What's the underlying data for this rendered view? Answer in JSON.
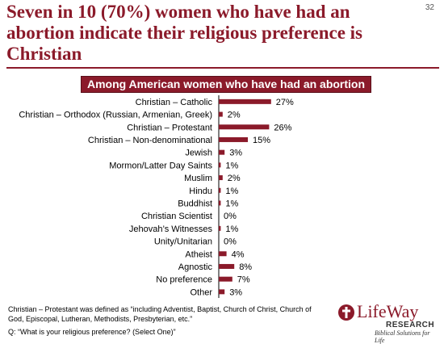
{
  "slide_number": "32",
  "title": "Seven in 10 (70%) women who have had an abortion indicate their religious preference is Christian",
  "colors": {
    "accent": "#8b1a2a",
    "bar": "#8b1a2a"
  },
  "chart_data": {
    "type": "bar",
    "orientation": "horizontal",
    "title": "Among American women who have had an abortion",
    "categories": [
      "Christian – Catholic",
      "Christian – Orthodox (Russian, Armenian, Greek)",
      "Christian – Protestant",
      "Christian – Non-denominational",
      "Jewish",
      "Mormon/Latter Day Saints",
      "Muslim",
      "Hindu",
      "Buddhist",
      "Christian Scientist",
      "Jehovah’s Witnesses",
      "Unity/Unitarian",
      "Atheist",
      "Agnostic",
      "No preference",
      "Other"
    ],
    "values": [
      27,
      2,
      26,
      15,
      3,
      1,
      2,
      1,
      1,
      0,
      1,
      0,
      4,
      8,
      7,
      3
    ],
    "value_labels": [
      "27%",
      "2%",
      "26%",
      "15%",
      "3%",
      "1%",
      "2%",
      "1%",
      "1%",
      "0%",
      "1%",
      "0%",
      "4%",
      "8%",
      "7%",
      "3%"
    ],
    "xlim": [
      0,
      30
    ],
    "grid": false,
    "legend": "none"
  },
  "footnote": "Christian – Protestant was defined as “including Adventist, Baptist, Church of Christ, Church of God, Episcopal, Lutheran, Methodists, Presbyterian, etc.”",
  "question": "Q: “What is your religious preference? (Select One)”",
  "logo": {
    "name": "LifeWay",
    "subname": "RESEARCH",
    "tagline": "Biblical Solutions for Life",
    "icon": "cross-in-circle-icon"
  }
}
